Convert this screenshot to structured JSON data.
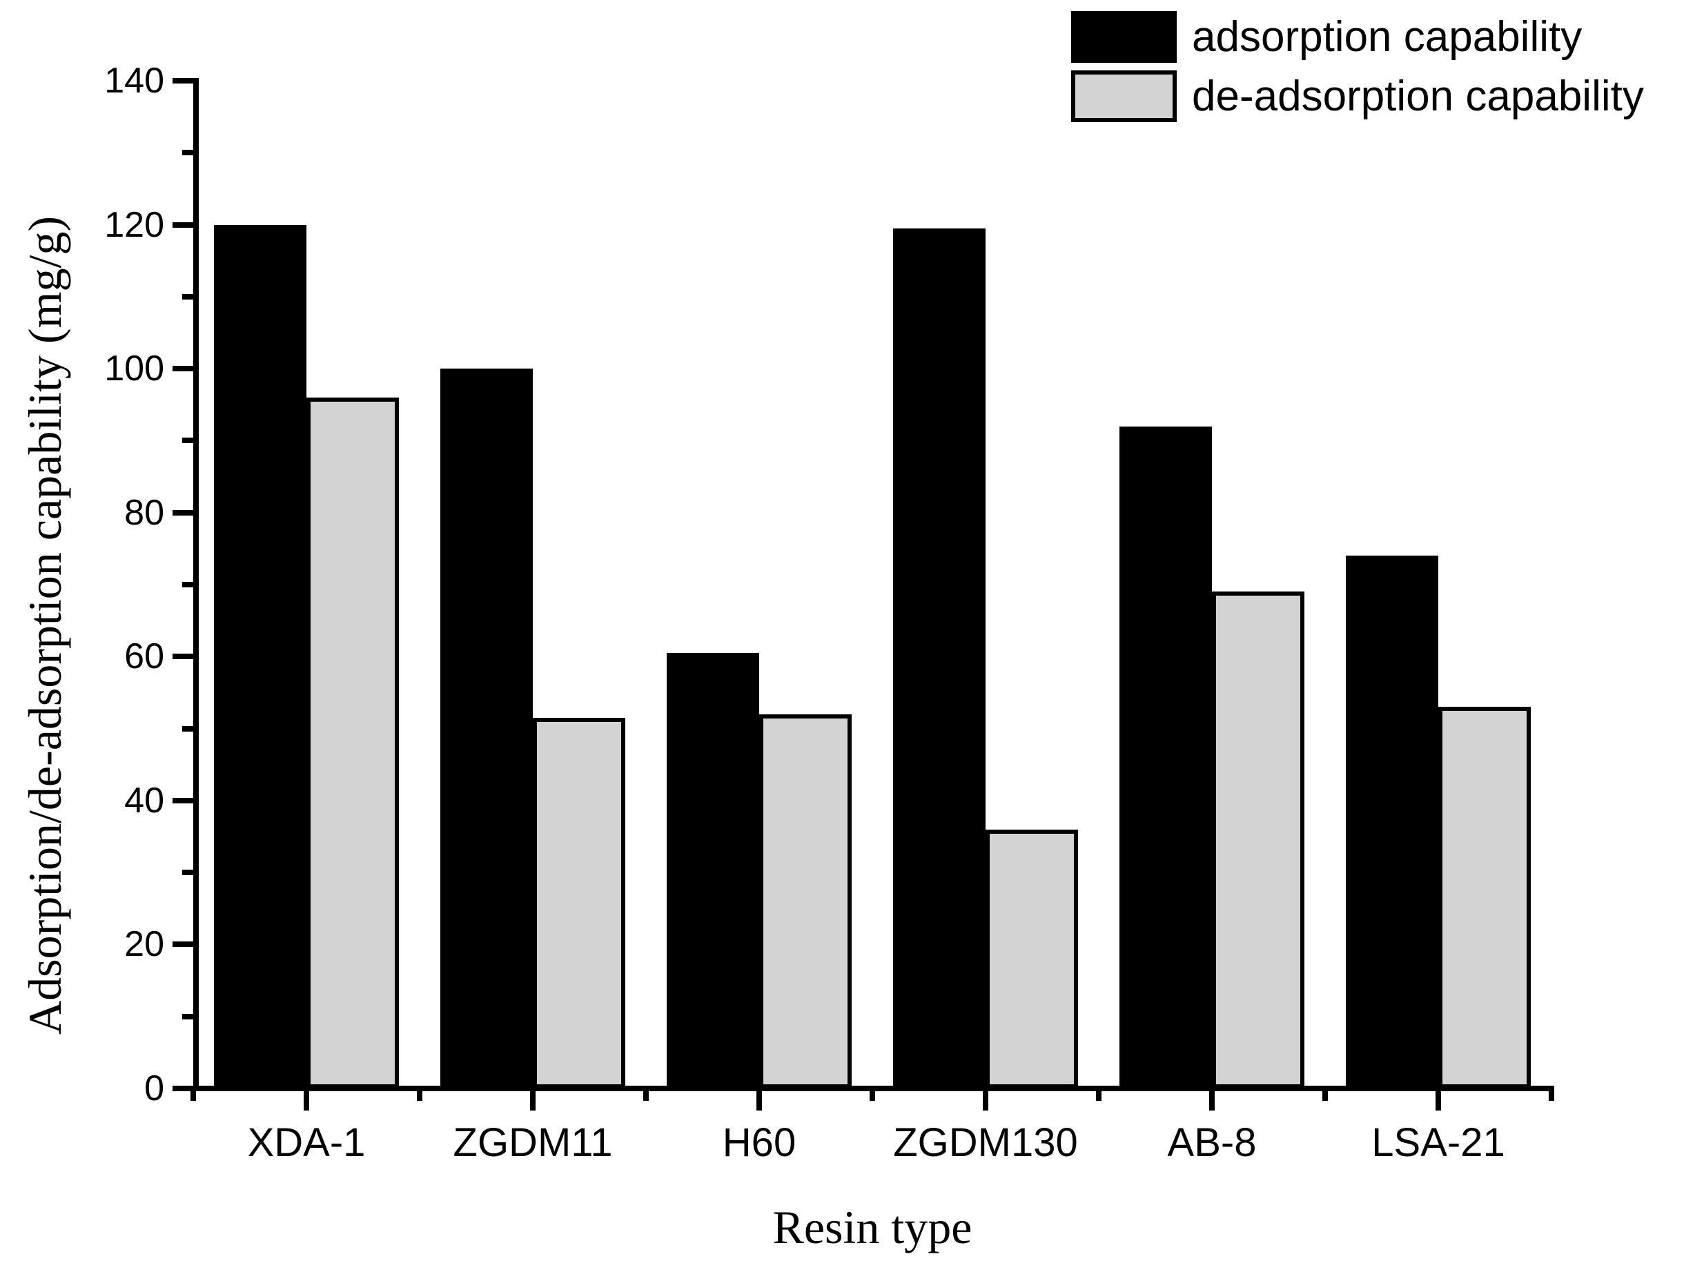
{
  "chart_data": {
    "type": "bar",
    "title": "",
    "xlabel": "Resin type",
    "ylabel": "Adsorption/de-adsorption capability (mg/g)",
    "categories": [
      "XDA-1",
      "ZGDM11",
      "H60",
      "ZGDM130",
      "AB-8",
      "LSA-21"
    ],
    "series": [
      {
        "name": "adsorption capability",
        "color": "#000000",
        "values": [
          120,
          100,
          60.5,
          119.5,
          92,
          74
        ]
      },
      {
        "name": "de-adsorption capability",
        "color": "#d3d3d3",
        "values": [
          96,
          51.5,
          52,
          36,
          69,
          53
        ]
      }
    ],
    "ylim": [
      0,
      140
    ],
    "yticks_major": [
      0,
      20,
      40,
      60,
      80,
      100,
      120,
      140
    ],
    "yticks_minor": [
      10,
      30,
      50,
      70,
      90,
      110,
      130
    ],
    "grid": false,
    "legend_position": "top-right",
    "bar_edge_color": "#000000",
    "background": "#ffffff"
  }
}
